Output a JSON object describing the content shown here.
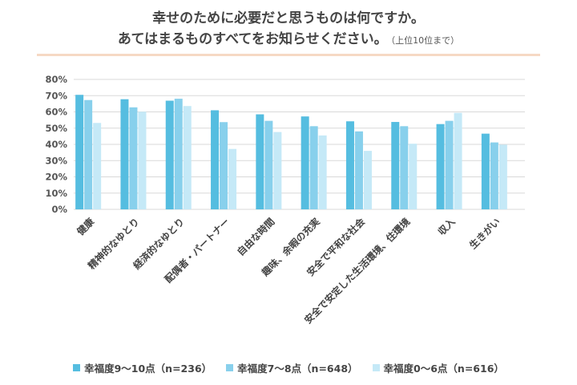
{
  "title": {
    "line1": "幸せのために必要だと思うものは何ですか。",
    "line2": "あてはまるものすべてをお知らせください。",
    "note": "（上位10位まで）"
  },
  "colors": {
    "series": [
      "#55bde0",
      "#88d0ec",
      "#c5e9f7"
    ],
    "grid": "#d9d9d9",
    "title_rule": "#f6d9c4"
  },
  "chart_data": {
    "type": "bar",
    "categories": [
      "健康",
      "精神的なゆとり",
      "経済的なゆとり",
      "配偶者・パートナー",
      "自由な時間",
      "趣味、余暇の充実",
      "安全で平和な社会",
      "安全で安定した生活環境、住環境",
      "収入",
      "生きがい"
    ],
    "series": [
      {
        "name": "幸福度9～10点（n=236）",
        "values": [
          70.5,
          67.8,
          66.9,
          61.0,
          58.5,
          57.2,
          54.2,
          53.8,
          52.5,
          46.6
        ]
      },
      {
        "name": "幸福度7～8点（n=648）",
        "values": [
          67.3,
          62.8,
          68.1,
          53.7,
          54.5,
          51.2,
          48.0,
          51.2,
          54.5,
          41.2
        ]
      },
      {
        "name": "幸福度0～6点（n=616）",
        "values": [
          53.2,
          60.1,
          63.6,
          37.2,
          47.6,
          45.5,
          36.0,
          40.4,
          59.4,
          39.8
        ]
      }
    ],
    "ylim": [
      0,
      80
    ],
    "yticks": [
      "0%",
      "10%",
      "20%",
      "30%",
      "40%",
      "50%",
      "60%",
      "70%",
      "80%"
    ],
    "grid": true,
    "legend_position": "bottom"
  }
}
